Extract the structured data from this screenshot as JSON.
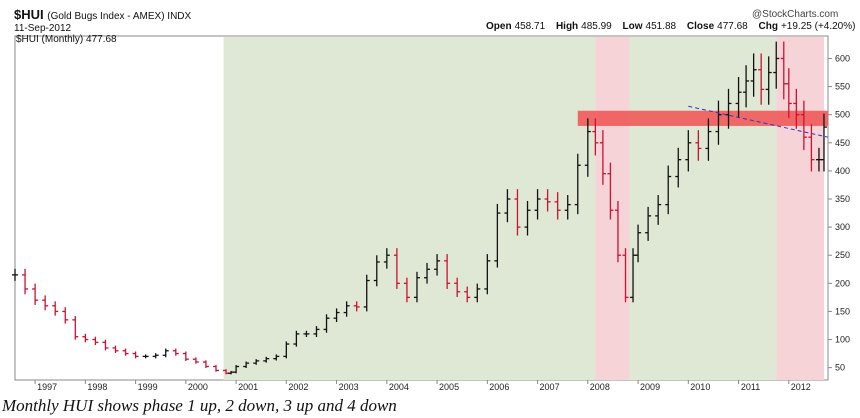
{
  "header": {
    "symbol": "$HUI",
    "description": "(Gold Bugs Index - AMEX) INDX",
    "date": "11-Sep-2012",
    "legend_label": "$HUI (Monthly) 477.68",
    "credit": "@StockCharts.com",
    "ohlc": {
      "open_label": "Open",
      "open_value": "458.71",
      "high_label": "High",
      "high_value": "485.99",
      "low_label": "Low",
      "low_value": "451.88",
      "close_label": "Close",
      "close_value": "477.68",
      "chg_label": "Chg",
      "chg_value": "+19.25 (+4.20%)"
    }
  },
  "caption": "Monthly HUI shows phase 1 up, 2 down, 3 up and 4 down",
  "colors": {
    "up_bar": "#111111",
    "down_bar": "#cc1133",
    "phase_up_shade": "#dfe8d4",
    "phase_down_shade": "#f6d3d6",
    "resistance_band": "#f05a5a",
    "trendline": "#3333cc"
  },
  "chart_data": {
    "type": "ohlc",
    "title": "$HUI (Monthly)",
    "xlabel": "",
    "ylabel": "",
    "x_ticks": [
      "1997",
      "1998",
      "1999",
      "2000",
      "2001",
      "2002",
      "2003",
      "2004",
      "2005",
      "2006",
      "2007",
      "2008",
      "2009",
      "2010",
      "2011",
      "2012"
    ],
    "y_ticks": [
      50,
      100,
      150,
      200,
      250,
      300,
      350,
      400,
      450,
      500,
      550,
      600
    ],
    "ylim": [
      28,
      640
    ],
    "xlim": [
      1996.6,
      2012.78
    ],
    "grid": false,
    "axis_side": "right",
    "series": [
      {
        "x": [
          1996.6,
          1996.8,
          1997.0,
          1997.2,
          1997.4,
          1997.6,
          1997.8,
          1998.0,
          1998.2,
          1998.4,
          1998.6,
          1998.8,
          1999.0,
          1999.2,
          1999.4,
          1999.6,
          1999.8,
          2000.0,
          2000.2,
          2000.4,
          2000.6,
          2000.8,
          2000.9,
          2001.0,
          2001.2,
          2001.4,
          2001.6,
          2001.8,
          2002.0,
          2002.2,
          2002.4,
          2002.6,
          2002.8,
          2003.0,
          2003.2,
          2003.4,
          2003.6,
          2003.8,
          2004.0,
          2004.2,
          2004.4,
          2004.6,
          2004.8,
          2005.0,
          2005.2,
          2005.4,
          2005.6,
          2005.8,
          2006.0,
          2006.2,
          2006.4,
          2006.6,
          2006.8,
          2007.0,
          2007.2,
          2007.4,
          2007.6,
          2007.8,
          2008.0,
          2008.15,
          2008.3,
          2008.45,
          2008.6,
          2008.75,
          2008.9,
          2009.0,
          2009.2,
          2009.4,
          2009.6,
          2009.8,
          2010.0,
          2010.2,
          2010.4,
          2010.6,
          2010.8,
          2011.0,
          2011.15,
          2011.3,
          2011.45,
          2011.6,
          2011.75,
          2011.9,
          2012.0,
          2012.15,
          2012.3,
          2012.45,
          2012.6,
          2012.7
        ],
        "y": [
          215,
          190,
          170,
          160,
          150,
          135,
          105,
          100,
          95,
          85,
          80,
          75,
          70,
          70,
          72,
          80,
          75,
          65,
          60,
          52,
          45,
          40,
          42,
          52,
          58,
          62,
          66,
          70,
          92,
          110,
          110,
          118,
          138,
          148,
          160,
          158,
          205,
          238,
          250,
          200,
          175,
          210,
          225,
          240,
          200,
          185,
          175,
          190,
          240,
          325,
          350,
          300,
          330,
          350,
          345,
          330,
          340,
          410,
          470,
          450,
          395,
          330,
          250,
          175,
          250,
          290,
          320,
          340,
          390,
          420,
          450,
          440,
          470,
          500,
          520,
          540,
          560,
          580,
          545,
          575,
          600,
          555,
          520,
          500,
          460,
          420,
          420,
          478
        ],
        "name": "$HUI"
      }
    ],
    "shaded_periods": [
      {
        "start": 2000.75,
        "end": 2008.15,
        "phase": "up"
      },
      {
        "start": 2008.15,
        "end": 2008.83,
        "phase": "down"
      },
      {
        "start": 2008.83,
        "end": 2011.75,
        "phase": "up"
      },
      {
        "start": 2011.75,
        "end": 2012.7,
        "phase": "down"
      }
    ],
    "resistance_band": {
      "low": 480,
      "high": 507,
      "x_start": 2007.8,
      "x_end": 2012.78
    },
    "trendline": {
      "x0": 2010.0,
      "y0": 515,
      "x1": 2012.78,
      "y1": 460
    }
  }
}
